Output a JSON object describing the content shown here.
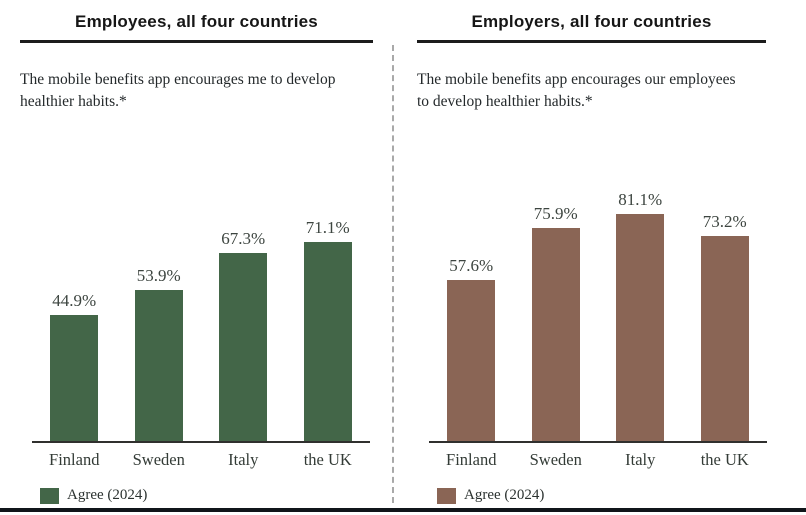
{
  "page": {
    "background": "#ffffff",
    "divider": "vertical-dashed",
    "bottom_rule_color": "#10151a"
  },
  "chart_data": [
    {
      "type": "bar",
      "title": "Employees, all four countries",
      "subtitle": "The mobile benefits app encourages me to develop healthier habits.*",
      "categories": [
        "Finland",
        "Sweden",
        "Italy",
        "the UK"
      ],
      "values": [
        44.9,
        53.9,
        67.3,
        71.1
      ],
      "value_labels": [
        "44.9%",
        "53.9%",
        "67.3%",
        "71.1%"
      ],
      "legend": "Agree (2024)",
      "bar_color": "#436648",
      "ylim": [
        0,
        100
      ],
      "grid": false,
      "legend_position": "bottom-left"
    },
    {
      "type": "bar",
      "title": "Employers, all four countries",
      "subtitle": "The mobile benefits app encourages our employees to develop healthier habits.*",
      "categories": [
        "Finland",
        "Sweden",
        "Italy",
        "the UK"
      ],
      "values": [
        57.6,
        75.9,
        81.1,
        73.2
      ],
      "value_labels": [
        "57.6%",
        "75.9%",
        "81.1%",
        "73.2%"
      ],
      "legend": "Agree (2024)",
      "bar_color": "#8a6555",
      "ylim": [
        0,
        100
      ],
      "grid": false,
      "legend_position": "bottom-left"
    }
  ]
}
